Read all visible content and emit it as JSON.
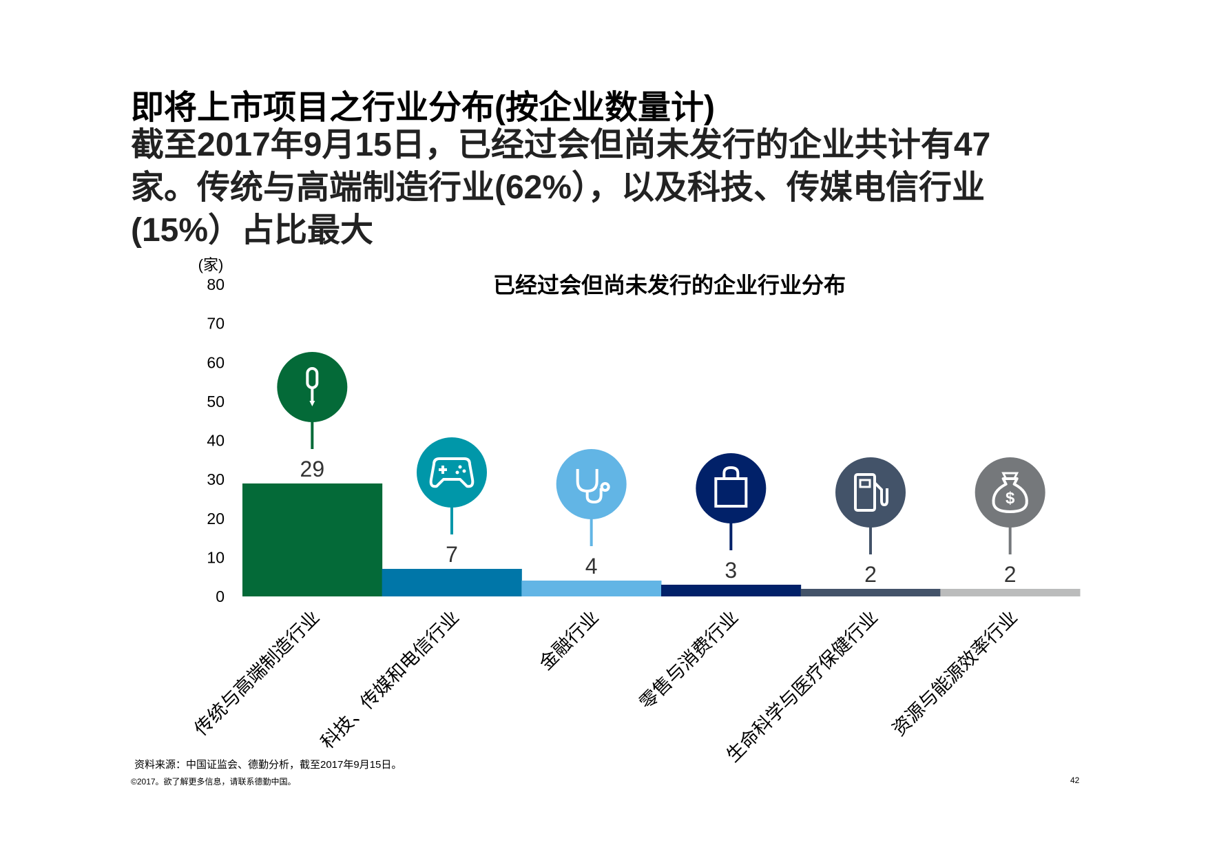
{
  "slide": {
    "title": "即将上市项目之行业分布(按企业数量计)",
    "subtitle_lines": [
      "截至2017年9月15日，已经过会但尚未发行的企业共计有47",
      "家。传统与高端制造行业(62%），以及科技、传媒电信行业",
      "(15%）占比最大"
    ],
    "source": "资料来源：中国证监会、德勤分析，截至2017年9月15日。",
    "copyright": "©2017。欲了解更多信息，请联系德勤中国。",
    "page_number": "42"
  },
  "chart_data": {
    "type": "bar",
    "title": "已经过会但尚未发行的企业行业分布",
    "ylabel": "(家)",
    "xlabel": "",
    "ylim": [
      0,
      80
    ],
    "yticks": [
      0,
      10,
      20,
      30,
      40,
      50,
      60,
      70,
      80
    ],
    "grid": false,
    "categories": [
      "传统与高端制造行业",
      "科技、传媒和电信行业",
      "金融行业",
      "零售与消费行业",
      "生命科学与医疗保健行业",
      "资源与能源效率行业"
    ],
    "values": [
      29,
      7,
      4,
      3,
      2,
      2
    ],
    "colors": [
      "#046A38",
      "#0076A8",
      "#62B5E5",
      "#012169",
      "#435369",
      "#BBBCBC"
    ],
    "pin_colors": [
      "#046A38",
      "#0097A9",
      "#62B5E5",
      "#012169",
      "#435369",
      "#75787B"
    ],
    "icons": [
      "screwdriver-icon",
      "gamepad-icon",
      "stethoscope-icon",
      "shopping-bag-icon",
      "fuel-pump-icon",
      "money-bag-icon"
    ]
  }
}
